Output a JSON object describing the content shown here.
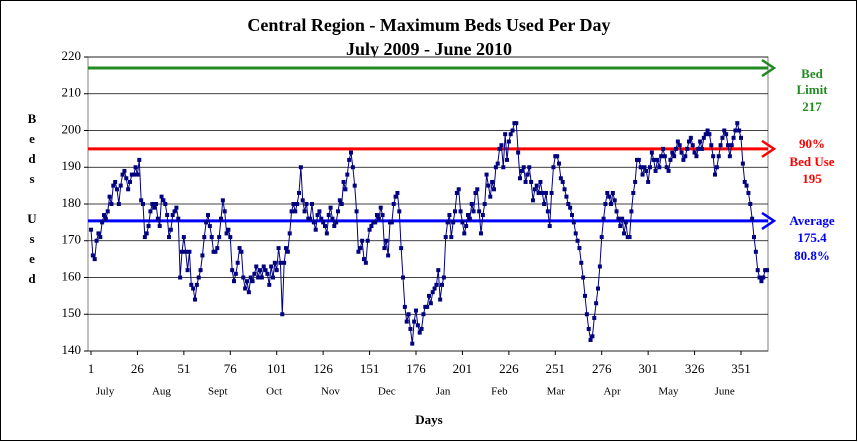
{
  "chart_data": {
    "type": "line",
    "title": "Central Region - Maximum Beds Used Per Day",
    "subtitle": "July 2009 - June 2010",
    "x_label": "Days",
    "y_label": "Beds Used",
    "xlim": [
      1,
      365
    ],
    "xticks": [
      1,
      26,
      51,
      76,
      101,
      126,
      151,
      176,
      201,
      226,
      251,
      276,
      301,
      326,
      351
    ],
    "months": [
      "July",
      "Aug",
      "Sept",
      "Oct",
      "Nov",
      "Dec",
      "Jan",
      "Feb",
      "Mar",
      "Apr",
      "May",
      "June"
    ],
    "ylim": [
      140,
      220
    ],
    "yticks": [
      140,
      150,
      160,
      170,
      180,
      190,
      200,
      210,
      220
    ],
    "grid": true,
    "series": [
      {
        "color": "#000080",
        "values": [
          173,
          166,
          165,
          170,
          172,
          171,
          175,
          177,
          176,
          178,
          182,
          180,
          185,
          186,
          184,
          180,
          185,
          188,
          189,
          187,
          184,
          186,
          188,
          188,
          190,
          188,
          192,
          181,
          180,
          171,
          172,
          174,
          178,
          180,
          179,
          180,
          176,
          174,
          182,
          181,
          180,
          177,
          171,
          173,
          177,
          178,
          179,
          176,
          160,
          167,
          171,
          167,
          162,
          167,
          158,
          157,
          154,
          158,
          160,
          162,
          166,
          171,
          175,
          177,
          174,
          171,
          167,
          167,
          168,
          171,
          176,
          181,
          178,
          172,
          173,
          171,
          162,
          159,
          161,
          164,
          168,
          167,
          160,
          157,
          159,
          156,
          160,
          159,
          161,
          163,
          160,
          162,
          160,
          163,
          162,
          161,
          158,
          163,
          160,
          164,
          162,
          168,
          164,
          150,
          164,
          168,
          167,
          172,
          178,
          180,
          178,
          180,
          183,
          190,
          181,
          178,
          180,
          176,
          176,
          180,
          175,
          173,
          177,
          178,
          176,
          175,
          174,
          172,
          177,
          179,
          176,
          174,
          175,
          178,
          181,
          180,
          186,
          184,
          188,
          192,
          194,
          190,
          185,
          178,
          167,
          168,
          170,
          165,
          164,
          170,
          173,
          174,
          175,
          175,
          177,
          176,
          179,
          177,
          168,
          170,
          166,
          175,
          175,
          180,
          182,
          183,
          178,
          168,
          160,
          152,
          148,
          150,
          146,
          142,
          148,
          151,
          147,
          145,
          146,
          150,
          152,
          152,
          155,
          153,
          156,
          157,
          158,
          162,
          154,
          158,
          160,
          171,
          175,
          177,
          171,
          175,
          178,
          183,
          184,
          178,
          175,
          172,
          174,
          177,
          176,
          180,
          178,
          183,
          184,
          178,
          172,
          177,
          180,
          188,
          185,
          182,
          186,
          184,
          190,
          191,
          195,
          196,
          190,
          199,
          192,
          197,
          199,
          200,
          202,
          202,
          194,
          187,
          189,
          190,
          186,
          188,
          190,
          186,
          181,
          184,
          185,
          183,
          186,
          183,
          180,
          183,
          178,
          174,
          183,
          190,
          193,
          193,
          191,
          187,
          186,
          184,
          182,
          180,
          179,
          177,
          175,
          172,
          170,
          168,
          164,
          160,
          155,
          150,
          146,
          143,
          144,
          149,
          153,
          157,
          163,
          171,
          176,
          180,
          183,
          182,
          180,
          183,
          181,
          178,
          176,
          174,
          176,
          172,
          175,
          171,
          171,
          178,
          183,
          186,
          192,
          192,
          190,
          188,
          190,
          189,
          186,
          190,
          194,
          192,
          189,
          192,
          190,
          193,
          195,
          193,
          190,
          189,
          192,
          194,
          193,
          195,
          197,
          196,
          194,
          192,
          193,
          195,
          197,
          198,
          196,
          194,
          193,
          195,
          197,
          195,
          198,
          199,
          200,
          199,
          196,
          193,
          188,
          190,
          193,
          196,
          198,
          200,
          199,
          196,
          193,
          196,
          198,
          200,
          202,
          200,
          198,
          191,
          186,
          185,
          183,
          180,
          176,
          171,
          167,
          162,
          160,
          159,
          160,
          162,
          162
        ]
      }
    ],
    "reference_lines": [
      {
        "text": [
          "Bed",
          "Limit"
        ],
        "value": 217,
        "color": "#228b22"
      },
      {
        "text": [
          "90%",
          "Bed Use"
        ],
        "value": 195,
        "color": "#ff0000"
      },
      {
        "text": [
          "Average"
        ],
        "value": 175.4,
        "extra": "80.8%",
        "color": "#0000ff"
      }
    ]
  }
}
